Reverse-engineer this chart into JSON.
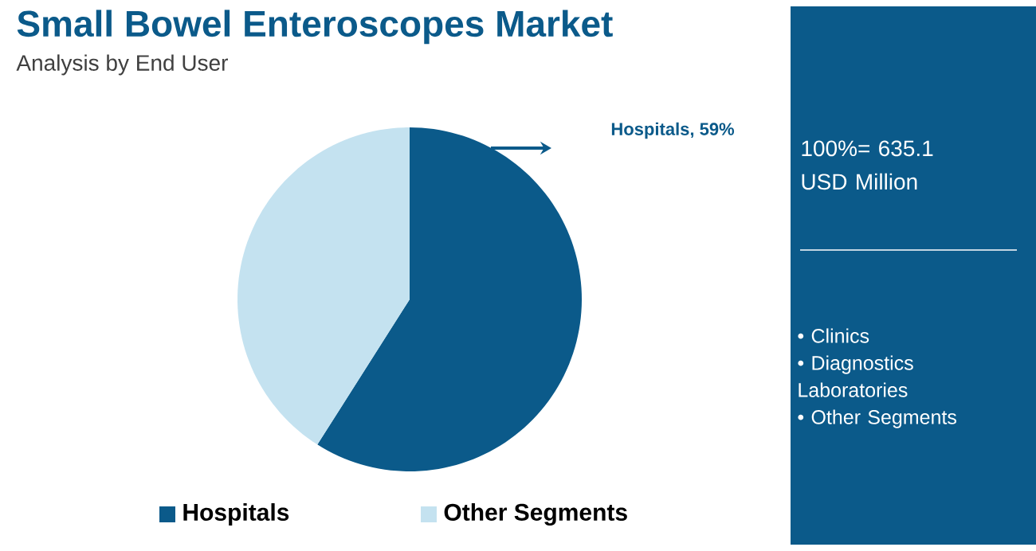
{
  "chart_data": {
    "type": "pie",
    "title": "Small Bowel Enteroscopes Market",
    "subtitle": "Analysis by End User",
    "categories": [
      "Hospitals",
      "Other Segments"
    ],
    "values": [
      59,
      41
    ],
    "colors": [
      "#0b5a8a",
      "#c4e2f0"
    ],
    "value_labels": [
      "Hospitals, 59%",
      null
    ],
    "legend": "bottom",
    "annotations": [
      "100%= 635.1 USD Million",
      "• Clinics",
      "• Diagnostics Laboratories",
      "• Other Segments"
    ]
  }
}
